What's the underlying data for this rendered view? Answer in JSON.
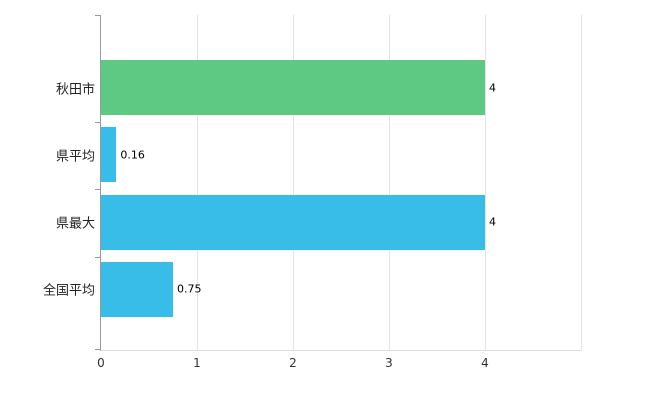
{
  "chart_data": {
    "type": "bar",
    "orientation": "horizontal",
    "title": "",
    "xlabel": "",
    "ylabel": "",
    "categories": [
      "秋田市",
      "県平均",
      "県最大",
      "全国平均"
    ],
    "values": [
      4,
      0.16,
      4,
      0.75
    ],
    "value_labels": [
      "4",
      "0.16",
      "4",
      "0.75"
    ],
    "bar_colors": [
      "#5dc983",
      "#38bde9",
      "#38bde9",
      "#38bde9"
    ],
    "x_ticks": [
      0,
      1,
      2,
      3,
      4
    ],
    "x_tick_labels": [
      "0",
      "1",
      "2",
      "3",
      "4"
    ],
    "xlim": [
      0,
      5
    ],
    "grid": true,
    "legend": false,
    "theme": {
      "background": "#ffffff",
      "axis_color": "#9a9a9a",
      "grid_color": "#e5e5e5",
      "text_color": "#222222",
      "value_label_color": "#000000"
    }
  }
}
